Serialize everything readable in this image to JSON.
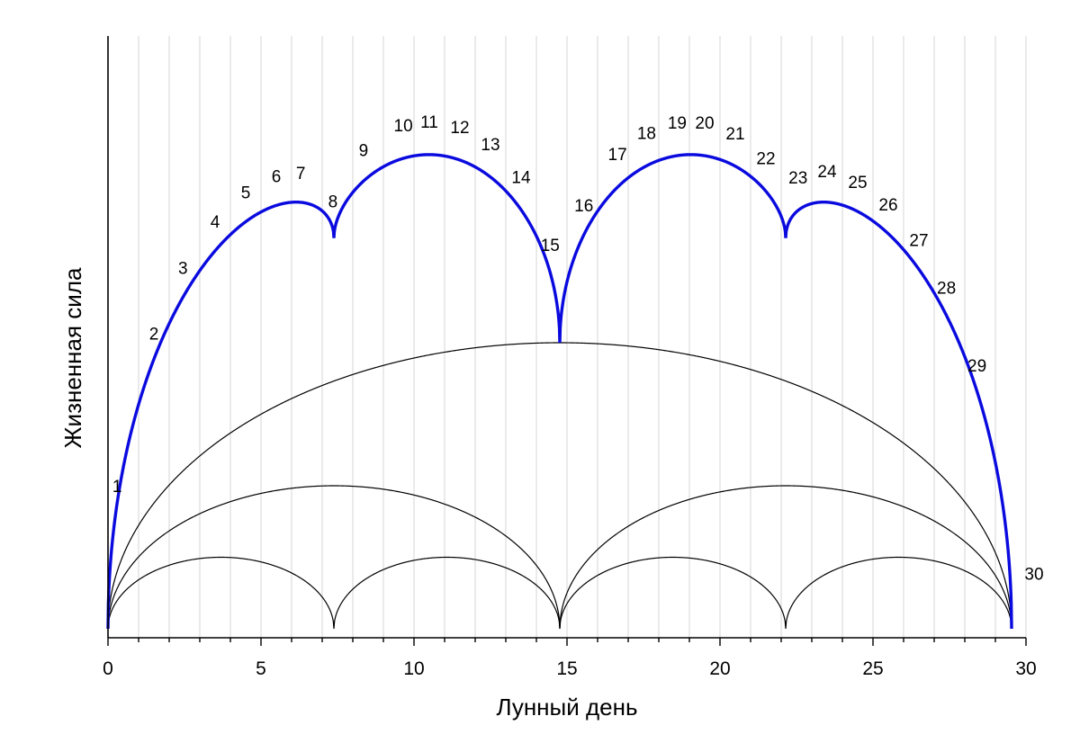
{
  "chart_data": {
    "type": "line",
    "xlabel": "Лунный день",
    "ylabel": "Жизненная сила",
    "xlim": [
      0,
      30
    ],
    "x_ticks": [
      "0",
      "5",
      "10",
      "15",
      "20",
      "25",
      "30"
    ],
    "grid": "vertical lines at each lunar day",
    "cycle_length": 29.53,
    "main_curve_color": "#0a0adf",
    "day_labels": [
      "1",
      "2",
      "3",
      "4",
      "5",
      "6",
      "7",
      "8",
      "9",
      "10",
      "11",
      "12",
      "13",
      "14",
      "15",
      "16",
      "17",
      "18",
      "19",
      "20",
      "21",
      "22",
      "23",
      "24",
      "25",
      "26",
      "27",
      "28",
      "29",
      "30"
    ],
    "series": [
      {
        "name": "",
        "description": "sum of the three semicircle curves (bold blue)",
        "y_relative": {
          "x7.38": 0.46,
          "x14.76": 0.34,
          "x22.15": 0.46,
          "peaks_x": [
            6.2,
            10.5,
            19.1,
            23.4
          ],
          "peak_y": [
            0.51,
            0.58,
            0.58,
            0.51
          ]
        }
      },
      {
        "name": "",
        "description": "one arc over the full cycle",
        "x_range": [
          0,
          29.53
        ],
        "peak_y": 0.34
      },
      {
        "name": "",
        "description": "two arcs, half cycle each",
        "x_range": [
          0,
          29.53
        ],
        "peak_y": 0.17
      },
      {
        "name": "",
        "description": "four arcs, quarter cycle each",
        "x_range": [
          0,
          29.53
        ],
        "peak_y": 0.085
      }
    ]
  }
}
